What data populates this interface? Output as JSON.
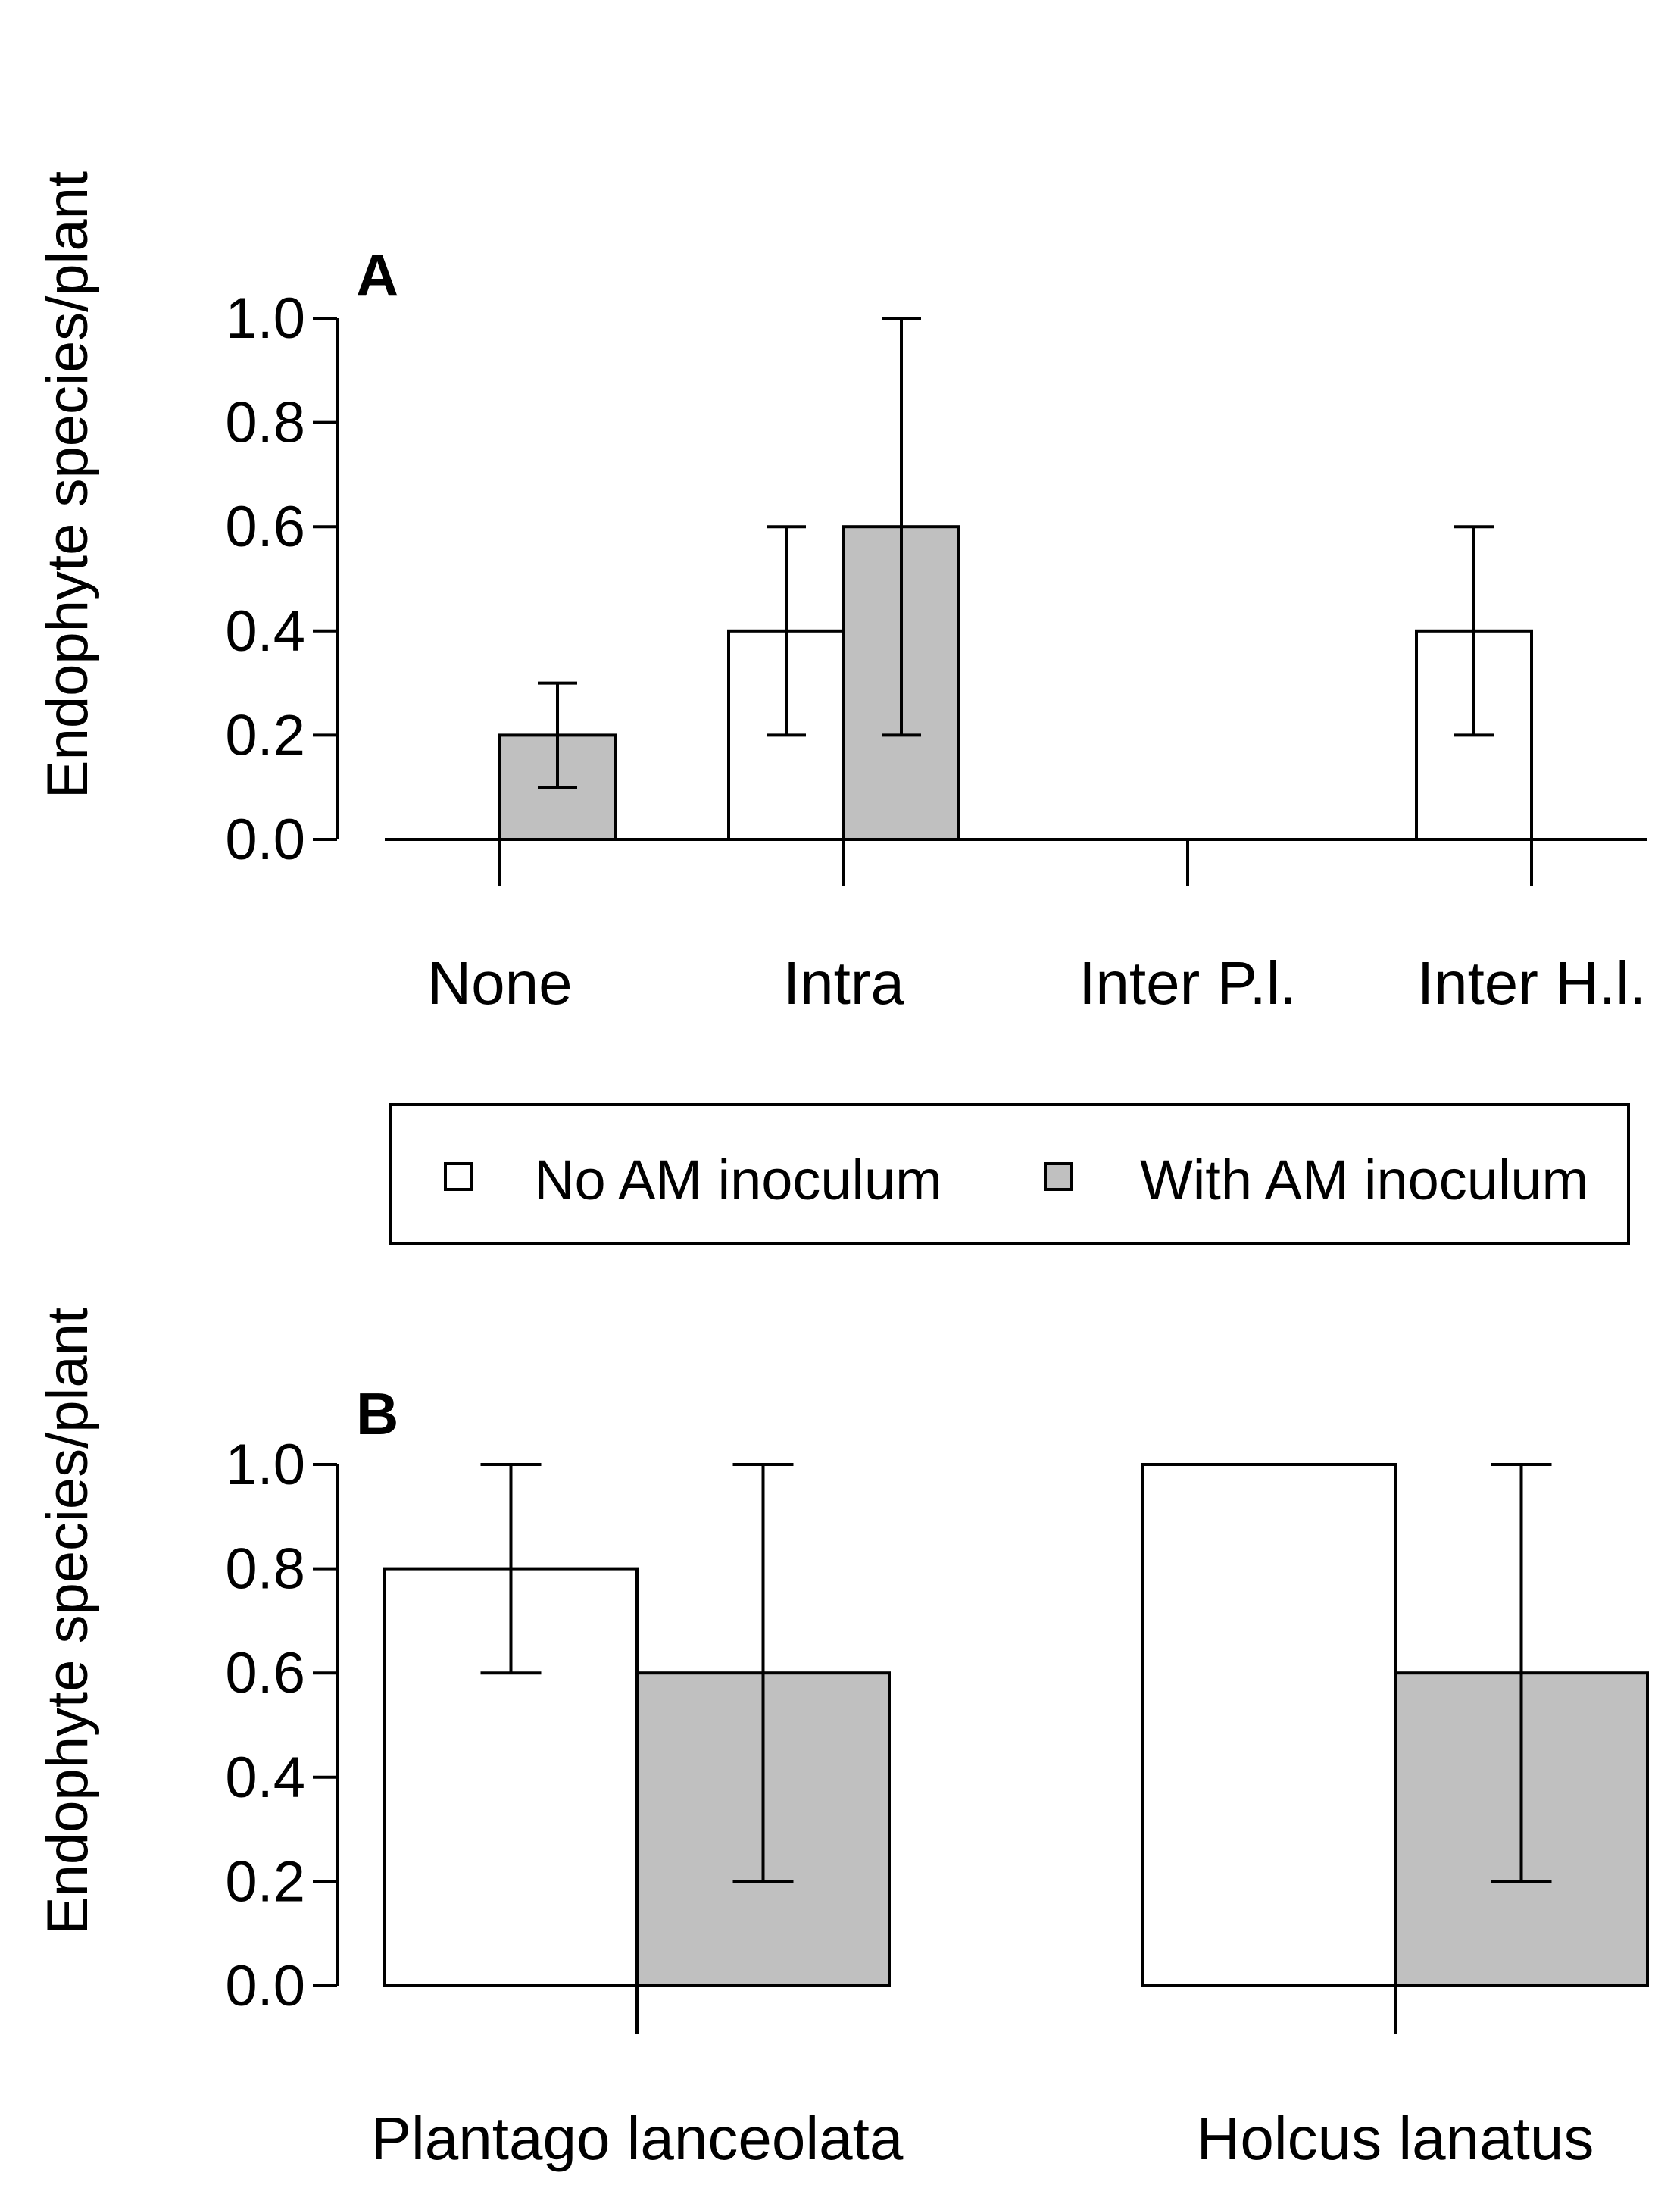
{
  "chart_data": [
    {
      "type": "bar",
      "panel_label": "A",
      "ylabel": "Endophyte species/plant",
      "xlabel": "",
      "ylim": [
        0,
        1.0
      ],
      "yticks": [
        "0.0",
        "0.2",
        "0.4",
        "0.6",
        "0.8",
        "1.0"
      ],
      "categories": [
        "None",
        "Intra",
        "Inter P.l.",
        "Inter H.l."
      ],
      "series": [
        {
          "name": "No AM inoculum",
          "color": "#ffffff",
          "values": [
            0,
            0.4,
            0,
            0.4
          ],
          "err_low": [
            null,
            0.2,
            null,
            0.2
          ],
          "err_high": [
            null,
            0.6,
            null,
            0.6
          ]
        },
        {
          "name": "With AM inoculum",
          "color": "#c0c0c0",
          "values": [
            0.2,
            0.6,
            0,
            0
          ],
          "err_low": [
            0.1,
            0.2,
            null,
            null
          ],
          "err_high": [
            0.3,
            1.0,
            null,
            null
          ]
        }
      ]
    },
    {
      "type": "bar",
      "panel_label": "B",
      "ylabel": "Endophyte species/plant",
      "xlabel": "",
      "ylim": [
        0,
        1.0
      ],
      "yticks": [
        "0.0",
        "0.2",
        "0.4",
        "0.6",
        "0.8",
        "1.0"
      ],
      "categories": [
        "Plantago lanceolata",
        "Holcus lanatus"
      ],
      "series": [
        {
          "name": "No AM inoculum",
          "color": "#ffffff",
          "values": [
            0.8,
            1.0
          ],
          "err_low": [
            0.6,
            null
          ],
          "err_high": [
            1.0,
            null
          ]
        },
        {
          "name": "With AM inoculum",
          "color": "#c0c0c0",
          "values": [
            0.6,
            0.6
          ],
          "err_low": [
            0.2,
            0.2
          ],
          "err_high": [
            1.0,
            1.0
          ]
        }
      ]
    }
  ],
  "legend": {
    "items": [
      {
        "label": "No AM inoculum",
        "color": "#ffffff"
      },
      {
        "label": "With AM inoculum",
        "color": "#c0c0c0"
      }
    ]
  }
}
